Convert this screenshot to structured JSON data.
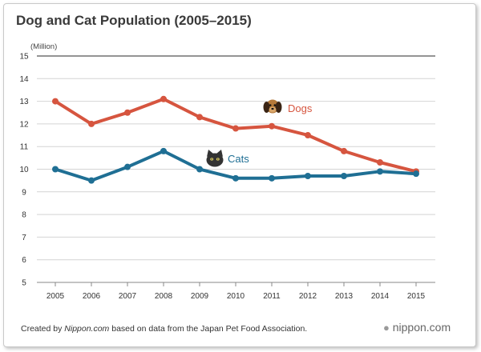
{
  "chart_data": {
    "type": "line",
    "title": "Dog and Cat Population (2005–2015)",
    "unit": "(Million)",
    "xlabel": "",
    "ylabel": "(Million)",
    "categories": [
      "2005",
      "2006",
      "2007",
      "2008",
      "2009",
      "2010",
      "2011",
      "2012",
      "2013",
      "2014",
      "2015"
    ],
    "yticks": [
      5,
      6,
      7,
      8,
      9,
      10,
      11,
      12,
      13,
      14,
      15
    ],
    "ylim": [
      5,
      15
    ],
    "grid": true,
    "series": [
      {
        "name": "Dogs",
        "color": "#d6553f",
        "icon": "dog-icon",
        "values": [
          13.0,
          12.0,
          12.5,
          13.1,
          12.3,
          11.8,
          11.9,
          11.5,
          10.8,
          10.3,
          9.9
        ]
      },
      {
        "name": "Cats",
        "color": "#1f6f94",
        "icon": "cat-icon",
        "values": [
          10.0,
          9.5,
          10.1,
          10.8,
          10.0,
          9.6,
          9.6,
          9.7,
          9.7,
          9.9,
          9.8
        ]
      }
    ]
  },
  "footer": {
    "prefix": "Created by ",
    "source": "Nippon.com",
    "suffix": " based on data from the Japan Pet Food Association."
  },
  "brand": {
    "dot": "●",
    "name": "nippon.com"
  }
}
